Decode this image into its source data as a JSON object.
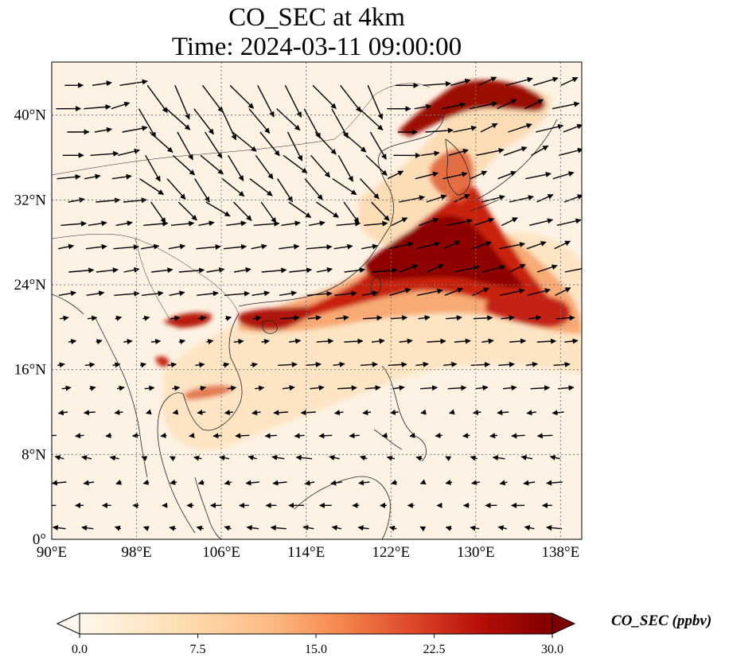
{
  "title": {
    "line1": "CO_SEC at 4km",
    "line2": "Time: 2024-03-11 09:00:00"
  },
  "map": {
    "lon_range": [
      90,
      140
    ],
    "lat_range": [
      0,
      45
    ],
    "x_ticks": [
      "90°E",
      "98°E",
      "106°E",
      "114°E",
      "122°E",
      "130°E",
      "138°E"
    ],
    "x_tick_values": [
      90,
      98,
      106,
      114,
      122,
      130,
      138
    ],
    "y_ticks": [
      "0°",
      "8°N",
      "16°N",
      "24°N",
      "32°N",
      "40°N"
    ],
    "y_tick_values": [
      0,
      8,
      16,
      24,
      32,
      40
    ],
    "gridlines": "dotted",
    "field": "CO_SEC",
    "background_color": "#fdf2e4",
    "plume_colors": [
      "#fdd6a4",
      "#f49c63",
      "#d9442a",
      "#8f0000"
    ]
  },
  "colorbar": {
    "label": "CO_SEC (ppbv)",
    "min": 0.0,
    "max": 30.0,
    "extend": "both",
    "colormap": "OrRd",
    "tick_labels": [
      "0.0",
      "7.5",
      "15.0",
      "22.5",
      "30.0"
    ],
    "tick_values": [
      0,
      7.5,
      15,
      22.5,
      30
    ]
  }
}
